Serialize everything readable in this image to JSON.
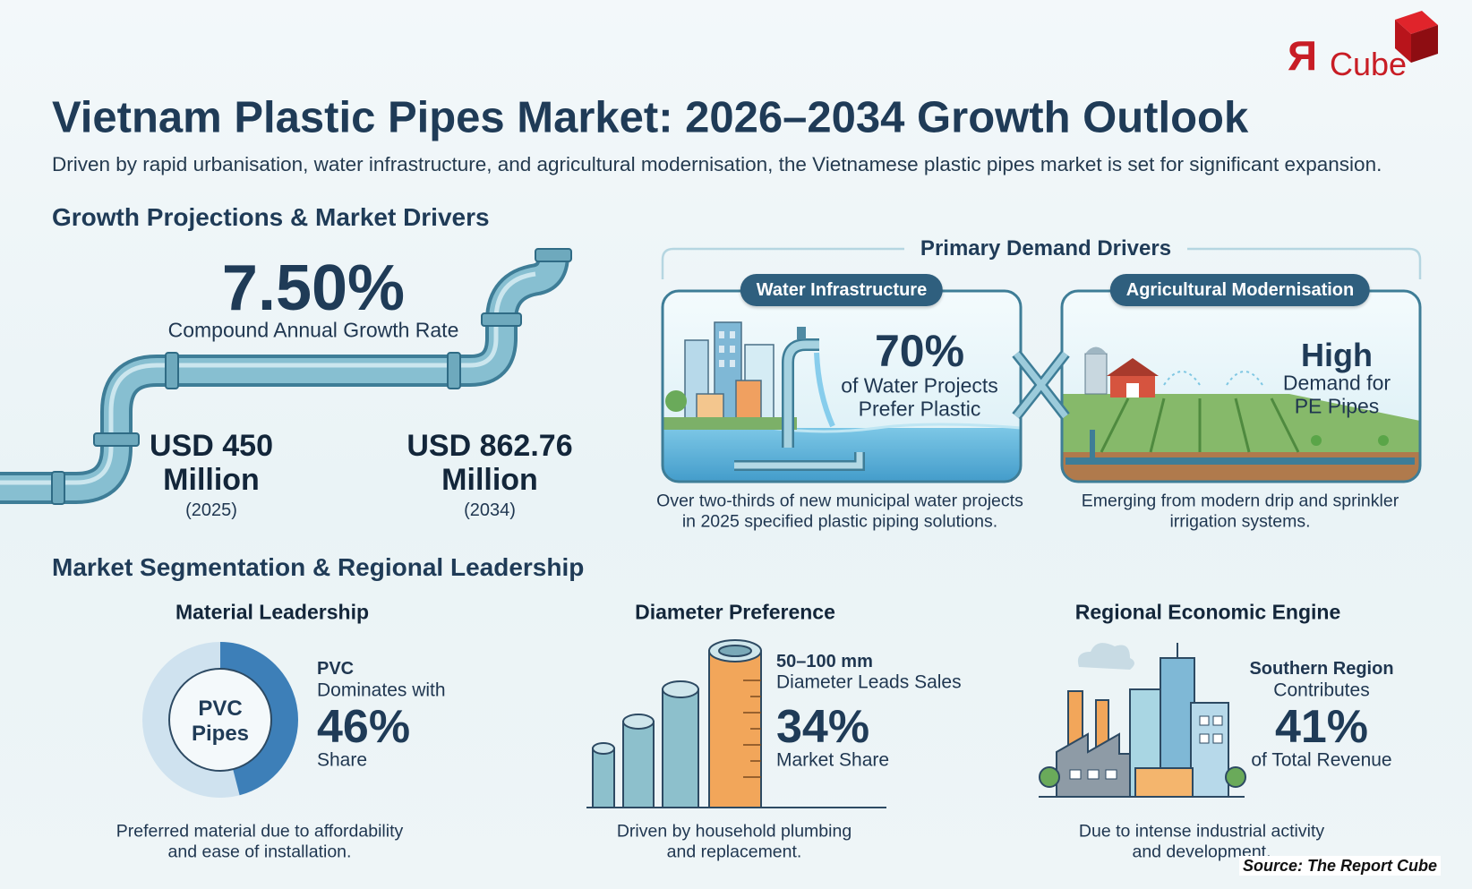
{
  "logo": {
    "mark": "Я",
    "name": "Cube"
  },
  "header": {
    "title": "Vietnam Plastic Pipes Market: 2026–2034 Growth Outlook",
    "subtitle": "Driven by rapid urbanisation, water infrastructure, and agricultural modernisation, the Vietnamese plastic pipes market is set for significant expansion."
  },
  "growth": {
    "heading": "Growth Projections & Market Drivers",
    "cagr": {
      "value": "7.50%",
      "label": "Compound Annual Growth Rate"
    },
    "start": {
      "value": "USD 450",
      "unit": "Million",
      "year": "(2025)"
    },
    "end": {
      "value": "USD 862.76",
      "unit": "Million",
      "year": "(2034)"
    }
  },
  "drivers": {
    "title": "Primary Demand Drivers",
    "cards": [
      {
        "label": "Water Infrastructure",
        "value": "70%",
        "text": [
          "of Water Projects",
          "Prefer Plastic"
        ],
        "caption": [
          "Over two-thirds of new municipal water projects",
          "in 2025 specified plastic piping solutions."
        ]
      },
      {
        "label": "Agricultural Modernisation",
        "value": "High",
        "text": [
          "Demand for",
          "PE Pipes"
        ],
        "caption": [
          "Emerging from modern drip and sprinkler",
          "irrigation systems."
        ]
      }
    ]
  },
  "segmentation": {
    "heading": "Market Segmentation & Regional Leadership",
    "panels": [
      {
        "heading": "Material Leadership",
        "graphic_label": [
          "PVC",
          "Pipes"
        ],
        "lead": "PVC",
        "text": "Dominates with",
        "value": "46%",
        "unit": "Share",
        "caption": [
          "Preferred material due to affordability",
          "and ease of installation."
        ]
      },
      {
        "heading": "Diameter Preference",
        "lead": "50–100 mm",
        "text": "Diameter Leads Sales",
        "value": "34%",
        "unit": "Market Share",
        "caption": [
          "Driven by household plumbing",
          "and replacement."
        ]
      },
      {
        "heading": "Regional Economic Engine",
        "lead": "Southern Region",
        "text": "Contributes",
        "value": "41%",
        "unit": "of Total Revenue",
        "caption": [
          "Due to intense industrial activity",
          "and development."
        ]
      }
    ]
  },
  "source": "Source: The Report Cube"
}
